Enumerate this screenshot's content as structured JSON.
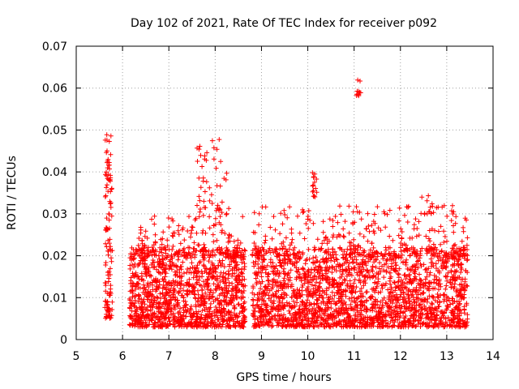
{
  "chart_data": {
    "type": "scatter",
    "title": "Day 102 of 2021, Rate Of TEC Index for receiver p092",
    "xlabel": "GPS time / hours",
    "ylabel": "ROTI / TECUs",
    "xlim": [
      5,
      14
    ],
    "ylim": [
      0,
      0.07
    ],
    "xticks": [
      "5",
      "6",
      "7",
      "8",
      "9",
      "10",
      "11",
      "12",
      "13",
      "14"
    ],
    "yticks": [
      "0",
      "0.01",
      "0.02",
      "0.03",
      "0.04",
      "0.05",
      "0.06",
      "0.07"
    ],
    "grid": true,
    "marker": "+",
    "color": "#ff0000",
    "series": [
      {
        "name": "ROTI",
        "clusters": [
          {
            "x": [
              5.62,
              5.78
            ],
            "y": [
              0.005,
              0.05
            ],
            "n": 120
          },
          {
            "x": [
              6.15,
              8.65
            ],
            "y": [
              0.003,
              0.022
            ],
            "n": 1300
          },
          {
            "x": [
              6.3,
              8.65
            ],
            "y": [
              0.02,
              0.03
            ],
            "n": 140
          },
          {
            "x": [
              7.6,
              8.3
            ],
            "y": [
              0.03,
              0.048
            ],
            "n": 50
          },
          {
            "x": [
              8.8,
              13.45
            ],
            "y": [
              0.003,
              0.022
            ],
            "n": 2200
          },
          {
            "x": [
              8.8,
              13.45
            ],
            "y": [
              0.02,
              0.032
            ],
            "n": 260
          },
          {
            "x": [
              10.1,
              10.2
            ],
            "y": [
              0.034,
              0.04
            ],
            "n": 15
          },
          {
            "x": [
              11.05,
              11.15
            ],
            "y": [
              0.058,
              0.062
            ],
            "n": 10
          },
          {
            "x": [
              12.4,
              12.7
            ],
            "y": [
              0.03,
              0.036
            ],
            "n": 12
          }
        ]
      }
    ]
  }
}
